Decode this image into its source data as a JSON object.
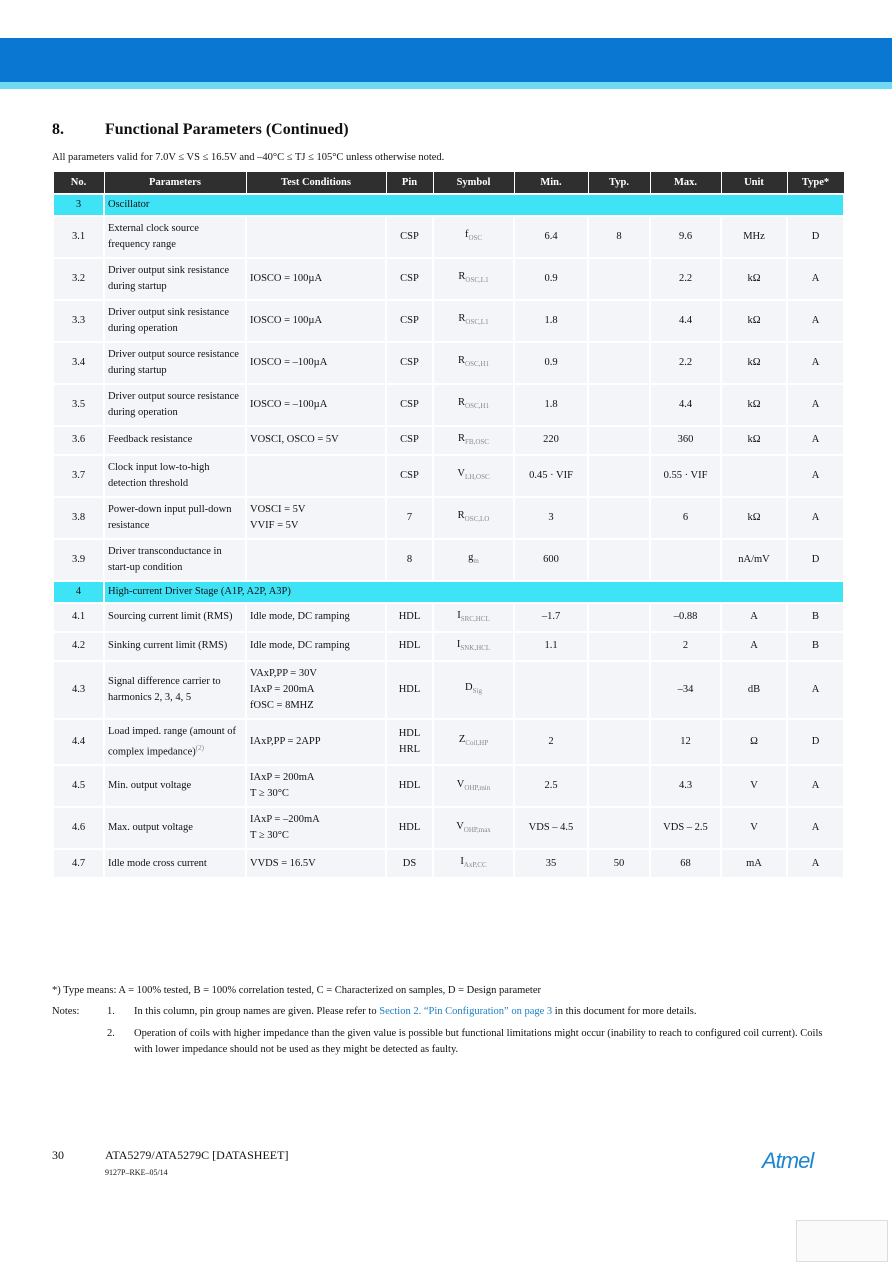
{
  "header": {
    "section_number": "8.",
    "title": "Functional Parameters (Continued)",
    "conditions": "All parameters valid for 7.0V ≤ VS ≤ 16.5V and –40°C ≤ TJ ≤ 105°C unless otherwise noted."
  },
  "table": {
    "columns": [
      "No.",
      "Parameters",
      "Test Conditions",
      "Pin",
      "Symbol",
      "Min.",
      "Typ.",
      "Max.",
      "Unit",
      "Type*"
    ],
    "rows": [
      {
        "section": "3",
        "title": "Oscillator"
      },
      {
        "no": "3.1",
        "param": "External clock source frequency range",
        "cond": "",
        "pin": "CSP",
        "sym": {
          "m": "f",
          "s": "OSC"
        },
        "min": "6.4",
        "typ": "8",
        "max": "9.6",
        "unit": "MHz",
        "type": "D"
      },
      {
        "no": "3.2",
        "param": "Driver output sink resistance during startup",
        "cond": "IOSCO = 100µA",
        "pin": "CSP",
        "sym": {
          "m": "R",
          "s": "OSC,L1"
        },
        "min": "0.9",
        "typ": "",
        "max": "2.2",
        "unit": "kΩ",
        "type": "A"
      },
      {
        "no": "3.3",
        "param": "Driver output sink resistance during operation",
        "cond": "IOSCO = 100µA",
        "pin": "CSP",
        "sym": {
          "m": "R",
          "s": "OSC,L1"
        },
        "min": "1.8",
        "typ": "",
        "max": "4.4",
        "unit": "kΩ",
        "type": "A"
      },
      {
        "no": "3.4",
        "param": "Driver output source resistance during startup",
        "cond": "IOSCO = –100µA",
        "pin": "CSP",
        "sym": {
          "m": "R",
          "s": "OSC,H1"
        },
        "min": "0.9",
        "typ": "",
        "max": "2.2",
        "unit": "kΩ",
        "type": "A"
      },
      {
        "no": "3.5",
        "param": "Driver output source resistance during operation",
        "cond": "IOSCO = –100µA",
        "pin": "CSP",
        "sym": {
          "m": "R",
          "s": "OSC,H1"
        },
        "min": "1.8",
        "typ": "",
        "max": "4.4",
        "unit": "kΩ",
        "type": "A"
      },
      {
        "no": "3.6",
        "param": "Feedback resistance",
        "cond": "VOSCI, OSCO = 5V",
        "pin": "CSP",
        "sym": {
          "m": "R",
          "s": "FB,OSC"
        },
        "min": "220",
        "typ": "",
        "max": "360",
        "unit": "kΩ",
        "type": "A"
      },
      {
        "no": "3.7",
        "param": "Clock input low-to-high detection threshold",
        "cond": "",
        "pin": "CSP",
        "sym": {
          "m": "V",
          "s": "LH,OSC"
        },
        "min": "0.45 · VIF",
        "typ": "",
        "max": "0.55 · VIF",
        "unit": "",
        "type": "A"
      },
      {
        "no": "3.8",
        "param": "Power-down input pull-down resistance",
        "cond": [
          "VOSCI = 5V",
          "VVIF = 5V"
        ],
        "pin": "7",
        "sym": {
          "m": "R",
          "s": "OSC,LO"
        },
        "min": "3",
        "typ": "",
        "max": "6",
        "unit": "kΩ",
        "type": "A"
      },
      {
        "no": "3.9",
        "param": "Driver transconductance in start-up condition",
        "cond": "",
        "pin": "8",
        "sym": {
          "m": "g",
          "s": "m"
        },
        "min": "600",
        "typ": "",
        "max": "",
        "unit": "nA/mV",
        "type": "D"
      },
      {
        "section": "4",
        "title": "High-current Driver Stage (A1P, A2P, A3P)"
      },
      {
        "no": "4.1",
        "param": "Sourcing current limit (RMS)",
        "cond": "Idle mode, DC ramping",
        "pin": "HDL",
        "sym": {
          "m": "I",
          "s": "SRC,HCL"
        },
        "min": "–1.7",
        "typ": "",
        "max": "–0.88",
        "unit": "A",
        "type": "B"
      },
      {
        "no": "4.2",
        "param": "Sinking current limit (RMS)",
        "cond": "Idle mode, DC ramping",
        "pin": "HDL",
        "sym": {
          "m": "I",
          "s": "SNK,HCL"
        },
        "min": "1.1",
        "typ": "",
        "max": "2",
        "unit": "A",
        "type": "B"
      },
      {
        "no": "4.3",
        "param": "Signal difference carrier to harmonics 2, 3, 4, 5",
        "cond": [
          "VAxP,PP = 30V",
          "IAxP = 200mA",
          "fOSC = 8MHZ"
        ],
        "pin": "HDL",
        "sym": {
          "m": "D",
          "s": "Sig"
        },
        "min": "",
        "typ": "",
        "max": "–34",
        "unit": "dB",
        "type": "A"
      },
      {
        "no": "4.4",
        "param": "Load imped. range (amount of complex impedance)",
        "note": "(2)",
        "cond": "IAxP,PP = 2APP",
        "pin": [
          "HDL",
          "HRL"
        ],
        "sym": {
          "m": "Z",
          "s": "Coil,HP"
        },
        "min": "2",
        "typ": "",
        "max": "12",
        "unit": "Ω",
        "type": "D"
      },
      {
        "no": "4.5",
        "param": "Min. output voltage",
        "cond": [
          "IAxP = 200mA",
          "T ≥ 30°C"
        ],
        "pin": "HDL",
        "sym": {
          "m": "V",
          "s": "OHP,min"
        },
        "min": "2.5",
        "typ": "",
        "max": "4.3",
        "unit": "V",
        "type": "A"
      },
      {
        "no": "4.6",
        "param": "Max. output voltage",
        "cond": [
          "IAxP = –200mA",
          "T ≥ 30°C"
        ],
        "pin": "HDL",
        "sym": {
          "m": "V",
          "s": "OHP,max"
        },
        "min": "VDS – 4.5",
        "typ": "",
        "max": "VDS – 2.5",
        "unit": "V",
        "type": "A"
      },
      {
        "no": "4.7",
        "param": "Idle mode cross current",
        "cond": "VVDS = 16.5V",
        "pin": "DS",
        "sym": {
          "m": "I",
          "s": "AxP,CC"
        },
        "min": "35",
        "typ": "50",
        "max": "68",
        "unit": "mA",
        "type": "A"
      }
    ]
  },
  "footnote": "*) Type means: A = 100% tested, B = 100% correlation tested, C = Characterized on samples, D = Design parameter",
  "notes": {
    "label": "Notes:",
    "items": [
      {
        "num": "1.",
        "text": "In this column, pin group names are given. Please refer to",
        "link": "Section 2. “Pin Configuration” on page 3",
        "tail": "in this document for more details."
      },
      {
        "num": "2.",
        "text": "Operation of coils with higher impedance than the given value is possible but functional limitations might occur (inability to reach to configured coil current). Coils with lower impedance should not be used as they might be detected as faulty."
      }
    ]
  },
  "footer": {
    "page": "30",
    "doc": "ATA5279/ATA5279C [DATASHEET]",
    "code": "9127P–RKE–05/14",
    "logo": "Atmel"
  }
}
